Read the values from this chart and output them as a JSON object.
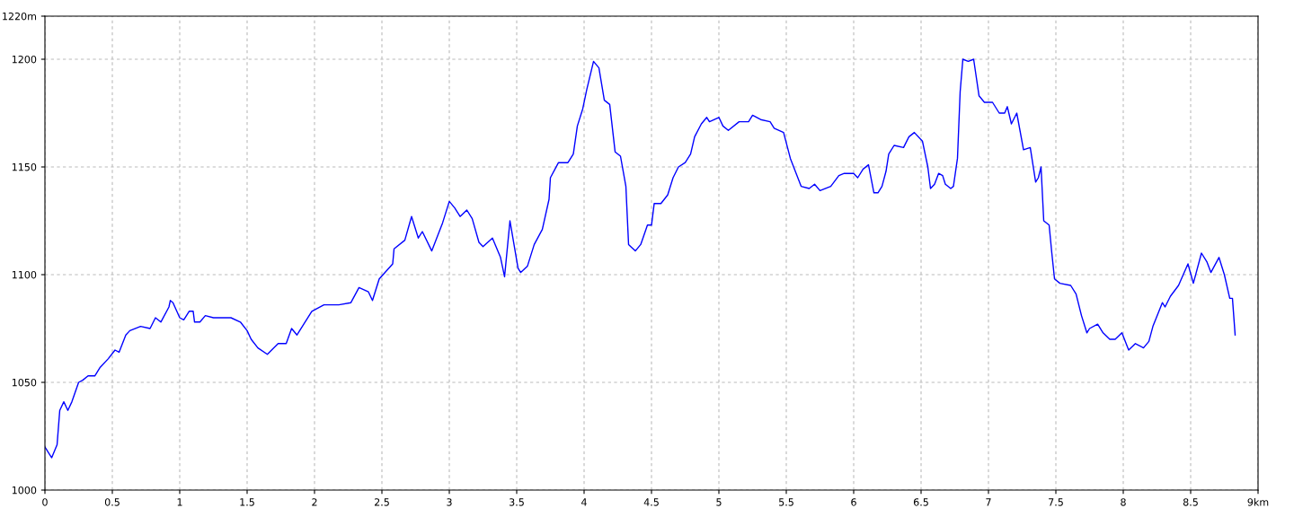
{
  "chart_data": {
    "type": "line",
    "x": [
      0,
      0.01,
      0.05,
      0.09,
      0.11,
      0.14,
      0.17,
      0.2,
      0.25,
      0.28,
      0.32,
      0.37,
      0.41,
      0.47,
      0.52,
      0.55,
      0.6,
      0.63,
      0.71,
      0.78,
      0.82,
      0.86,
      0.92,
      0.93,
      0.95,
      1.0,
      1.03,
      1.07,
      1.1,
      1.11,
      1.15,
      1.19,
      1.25,
      1.32,
      1.38,
      1.45,
      1.5,
      1.53,
      1.58,
      1.65,
      1.73,
      1.79,
      1.83,
      1.87,
      1.98,
      2.07,
      2.18,
      2.27,
      2.33,
      2.4,
      2.43,
      2.48,
      2.58,
      2.59,
      2.67,
      2.72,
      2.77,
      2.8,
      2.87,
      2.95,
      3.0,
      3.04,
      3.08,
      3.13,
      3.17,
      3.22,
      3.25,
      3.32,
      3.38,
      3.41,
      3.45,
      3.51,
      3.53,
      3.58,
      3.63,
      3.69,
      3.74,
      3.75,
      3.81,
      3.88,
      3.92,
      3.95,
      3.99,
      4.02,
      4.07,
      4.11,
      4.15,
      4.19,
      4.23,
      4.27,
      4.31,
      4.33,
      4.38,
      4.42,
      4.47,
      4.5,
      4.52,
      4.57,
      4.62,
      4.66,
      4.7,
      4.75,
      4.79,
      4.82,
      4.87,
      4.91,
      4.93,
      5.0,
      5.03,
      5.07,
      5.15,
      5.22,
      5.25,
      5.31,
      5.38,
      5.41,
      5.48,
      5.53,
      5.61,
      5.67,
      5.71,
      5.75,
      5.83,
      5.89,
      5.93,
      6.0,
      6.03,
      6.07,
      6.11,
      6.15,
      6.18,
      6.21,
      6.24,
      6.26,
      6.3,
      6.37,
      6.41,
      6.45,
      6.51,
      6.55,
      6.57,
      6.6,
      6.63,
      6.66,
      6.68,
      6.72,
      6.74,
      6.77,
      6.79,
      6.81,
      6.85,
      6.89,
      6.93,
      6.97,
      7.03,
      7.08,
      7.12,
      7.14,
      7.17,
      7.21,
      7.26,
      7.31,
      7.35,
      7.37,
      7.39,
      7.41,
      7.45,
      7.47,
      7.49,
      7.53,
      7.61,
      7.65,
      7.69,
      7.73,
      7.75,
      7.81,
      7.85,
      7.9,
      7.94,
      7.99,
      8.04,
      8.09,
      8.15,
      8.19,
      8.22,
      8.29,
      8.31,
      8.35,
      8.41,
      8.48,
      8.52,
      8.58,
      8.62,
      8.65,
      8.71,
      8.75,
      8.79,
      8.81,
      8.83
    ],
    "series": [
      {
        "color": "#0000ff",
        "values": [
          1020,
          1019,
          1015,
          1021,
          1037,
          1041,
          1037,
          1041,
          1050,
          1051,
          1053,
          1053,
          1057,
          1061,
          1065,
          1064,
          1072,
          1074,
          1076,
          1075,
          1080,
          1078,
          1085,
          1088,
          1087,
          1080,
          1079,
          1083,
          1083,
          1078,
          1078,
          1081,
          1080,
          1080,
          1080,
          1078,
          1074,
          1070,
          1066,
          1063,
          1068,
          1068,
          1075,
          1072,
          1083,
          1086,
          1086,
          1087,
          1094,
          1092,
          1088,
          1098,
          1105,
          1112,
          1116,
          1127,
          1117,
          1120,
          1111,
          1124,
          1134,
          1131,
          1127,
          1130,
          1126,
          1115,
          1113,
          1117,
          1108,
          1099,
          1125,
          1103,
          1101,
          1104,
          1114,
          1121,
          1135,
          1145,
          1152,
          1152,
          1156,
          1169,
          1177,
          1186,
          1199,
          1196,
          1181,
          1179,
          1157,
          1155,
          1141,
          1114,
          1111,
          1114,
          1123,
          1123,
          1133,
          1133,
          1137,
          1145,
          1150,
          1152,
          1156,
          1164,
          1170,
          1173,
          1171,
          1173,
          1169,
          1167,
          1171,
          1171,
          1174,
          1172,
          1171,
          1168,
          1166,
          1154,
          1141,
          1140,
          1142,
          1139,
          1141,
          1146,
          1147,
          1147,
          1145,
          1149,
          1151,
          1138,
          1138,
          1141,
          1148,
          1156,
          1160,
          1159,
          1164,
          1166,
          1162,
          1150,
          1140,
          1142,
          1147,
          1146,
          1142,
          1140,
          1141,
          1154,
          1185,
          1200,
          1199,
          1200,
          1183,
          1180,
          1180,
          1175,
          1175,
          1178,
          1170,
          1175,
          1158,
          1159,
          1143,
          1145,
          1150,
          1125,
          1123,
          1110,
          1098,
          1096,
          1095,
          1091,
          1081,
          1073,
          1075,
          1077,
          1073,
          1070,
          1070,
          1073,
          1065,
          1068,
          1066,
          1069,
          1076,
          1087,
          1085,
          1090,
          1095,
          1105,
          1096,
          1110,
          1106,
          1101,
          1108,
          1100,
          1089,
          1089,
          1072
        ]
      }
    ],
    "xlim": [
      0,
      9
    ],
    "ylim": [
      1000,
      1220
    ],
    "xticks": [
      0,
      0.5,
      1,
      1.5,
      2,
      2.5,
      3,
      3.5,
      4,
      4.5,
      5,
      5.5,
      6,
      6.5,
      7,
      7.5,
      8,
      8.5,
      {
        "value": 9,
        "label": "9km"
      }
    ],
    "yticks": [
      1000,
      1050,
      1100,
      1150,
      1200,
      {
        "value": 1220,
        "label": "1220m"
      }
    ],
    "grid": true
  }
}
